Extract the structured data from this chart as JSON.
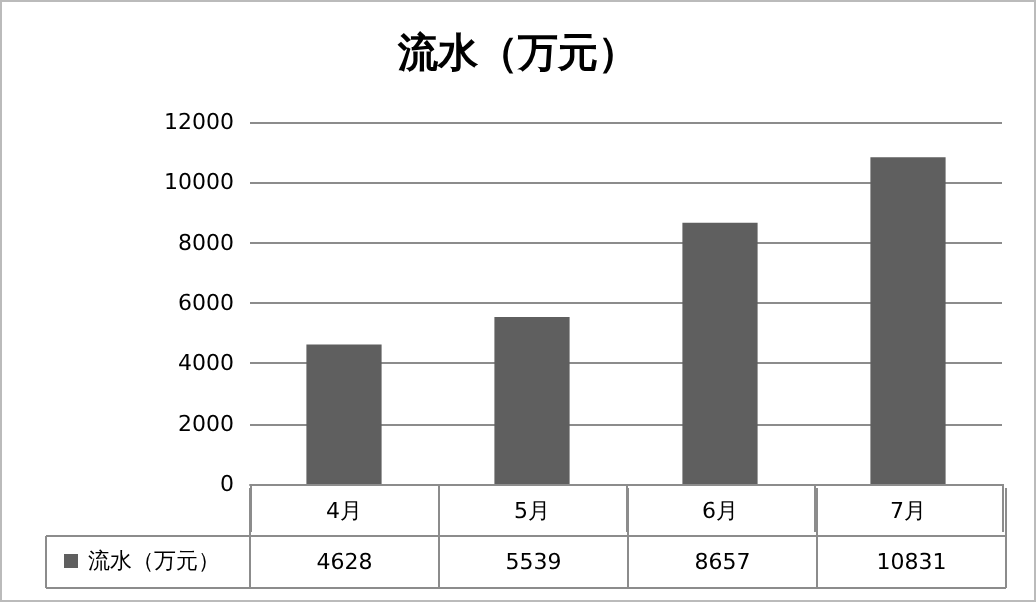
{
  "chart_data": {
    "type": "bar",
    "title": "流水（万元）",
    "categories": [
      "4月",
      "5月",
      "6月",
      "7月"
    ],
    "series": [
      {
        "name": "流水（万元）",
        "color": "#5f5f5f",
        "values": [
          4628,
          5539,
          8657,
          10831
        ]
      }
    ],
    "ylim": [
      0,
      12000
    ],
    "yticks": [
      0,
      2000,
      4000,
      6000,
      8000,
      10000,
      12000
    ],
    "grid": "y",
    "legend": "bottom left",
    "data_labels": true
  }
}
